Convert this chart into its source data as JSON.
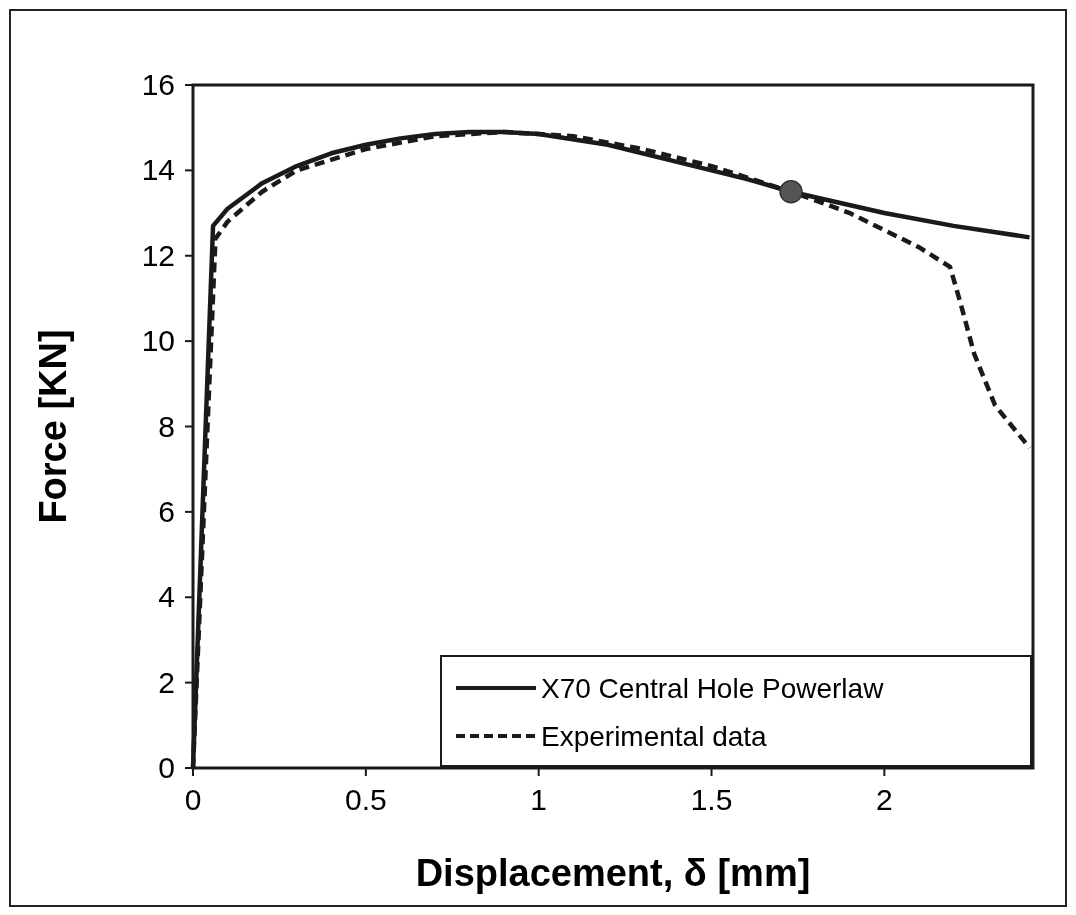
{
  "chart_data": {
    "type": "line",
    "xlabel": "Displacement, δ [mm]",
    "ylabel": "Force [KN]",
    "xlim": [
      0,
      2.43
    ],
    "ylim": [
      0,
      16
    ],
    "xticks": [
      0,
      0.5,
      1,
      1.5,
      2
    ],
    "yticks": [
      0,
      2,
      4,
      6,
      8,
      10,
      12,
      14,
      16
    ],
    "grid": false,
    "legend": "bottom right",
    "series": [
      {
        "name": "X70 Central Hole Powerlaw",
        "color": "#1a1a1a",
        "line_style": "solid",
        "x": [
          0,
          0.058,
          0.1,
          0.2,
          0.3,
          0.4,
          0.5,
          0.6,
          0.7,
          0.8,
          0.9,
          1.0,
          1.2,
          1.4,
          1.6,
          1.73,
          2.0,
          2.2,
          2.42
        ],
        "values": [
          0,
          12.7,
          13.1,
          13.7,
          14.1,
          14.4,
          14.6,
          14.75,
          14.85,
          14.9,
          14.9,
          14.85,
          14.6,
          14.2,
          13.8,
          13.5,
          13.0,
          12.7,
          12.43
        ]
      },
      {
        "name": "Experimental data",
        "color": "#1a1a1a",
        "line_style": "dashed",
        "x": [
          0,
          0.065,
          0.1,
          0.2,
          0.3,
          0.5,
          0.7,
          0.9,
          1.1,
          1.3,
          1.5,
          1.73,
          1.8,
          1.9,
          2.0,
          2.1,
          2.19,
          2.22,
          2.26,
          2.32,
          2.42
        ],
        "values": [
          0,
          12.4,
          12.8,
          13.5,
          14.0,
          14.5,
          14.8,
          14.9,
          14.8,
          14.5,
          14.1,
          13.5,
          13.3,
          13.0,
          12.6,
          12.2,
          11.74,
          10.9,
          9.7,
          8.5,
          7.5
        ]
      },
      {
        "type": "scatter",
        "color": "#555555",
        "marker": "circle",
        "x": [
          1.73
        ],
        "values": [
          13.5
        ]
      }
    ]
  }
}
